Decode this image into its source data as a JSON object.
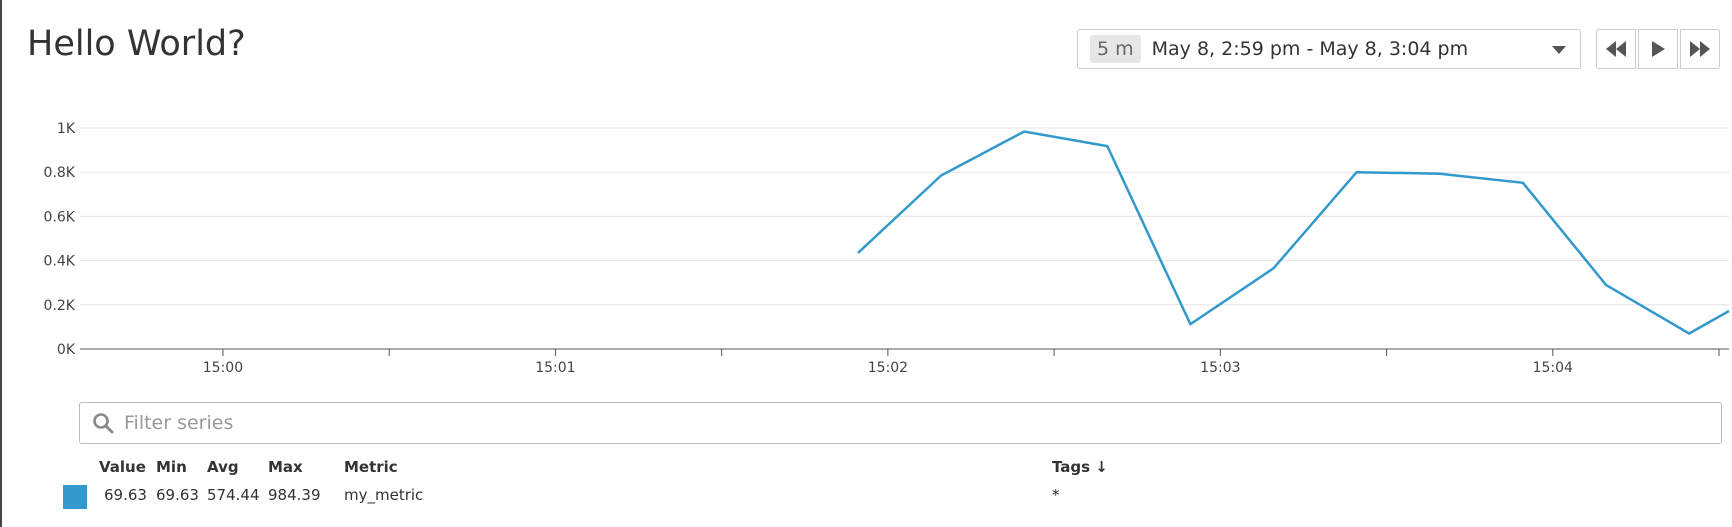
{
  "header": {
    "title": "Hello World?"
  },
  "time_selector": {
    "span": "5 m",
    "range": "May 8, 2:59 pm - May 8, 3:04 pm"
  },
  "nav": {
    "back_icon": "rewind-icon",
    "play_icon": "play-icon",
    "forward_icon": "fast-forward-icon"
  },
  "chart_data": {
    "type": "line",
    "x_tick_labels": [
      "15:00",
      "15:01",
      "15:02",
      "15:03",
      "15:04"
    ],
    "y_tick_labels": [
      "0K",
      "0.2K",
      "0.4K",
      "0.6K",
      "0.8K",
      "1K"
    ],
    "ylim": [
      0,
      1000
    ],
    "xlim_minutes_past_1500": [
      -0.43,
      4.53
    ],
    "grid": true,
    "series": [
      {
        "color": "#3399cc",
        "x": [
          "15:01:55",
          "15:02:10",
          "15:02:25",
          "15:02:40",
          "15:02:55",
          "15:03:10",
          "15:03:25",
          "15:03:40",
          "15:03:55",
          "15:04:10",
          "15:04:25",
          "15:04:32"
        ],
        "x_minutes_past_1500": [
          1.91,
          2.16,
          2.41,
          2.66,
          2.91,
          3.16,
          3.41,
          3.66,
          3.91,
          4.16,
          4.41,
          4.53
        ],
        "values": [
          435,
          785,
          984,
          918,
          112,
          365,
          800,
          793,
          752,
          290,
          70,
          172
        ]
      }
    ]
  },
  "filter": {
    "placeholder": "Filter series",
    "value": ""
  },
  "legend": {
    "headers": {
      "value": "Value",
      "min": "Min",
      "avg": "Avg",
      "max": "Max",
      "metric": "Metric",
      "tags": "Tags ↓"
    },
    "rows": [
      {
        "color": "#3399cc",
        "value": "69.63",
        "min": "69.63",
        "avg": "574.44",
        "max": "984.39",
        "metric": "my_metric",
        "tags": "*"
      }
    ]
  }
}
